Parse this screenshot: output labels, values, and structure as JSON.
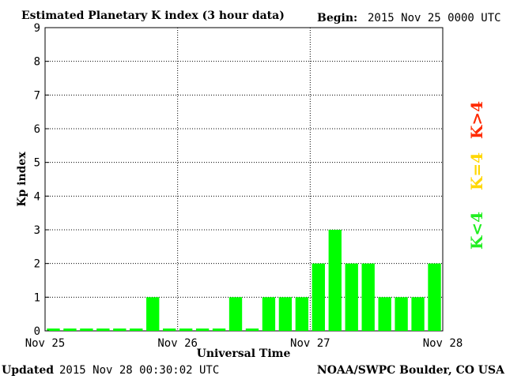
{
  "header": {
    "title": "Estimated Planetary K index (3 hour data)",
    "begin_label": "Begin:",
    "begin_value": "2015 Nov 25 0000 UTC"
  },
  "footer": {
    "updated_label": "Updated",
    "updated_value": "2015 Nov 28 00:30:02 UTC",
    "source": "NOAA/SWPC Boulder, CO USA"
  },
  "legend": {
    "high": "K>4",
    "mid": "K=4",
    "low": "K<4",
    "colors": {
      "high": "#ff2a00",
      "mid": "#ffd700",
      "low": "#22ee22"
    }
  },
  "chart_data": {
    "type": "bar",
    "title": "Estimated Planetary K index (3 hour data)",
    "xlabel": "Universal Time",
    "ylabel": "Kp index",
    "ylim": [
      0,
      9
    ],
    "yticks": [
      "0",
      "1",
      "2",
      "3",
      "4",
      "5",
      "6",
      "7",
      "8",
      "9"
    ],
    "xticks": [
      "Nov 25",
      "Nov 26",
      "Nov 27",
      "Nov 28"
    ],
    "grid": true,
    "bar_color": "#00ff00",
    "values": [
      0,
      0,
      0,
      0,
      0,
      0,
      1,
      0,
      0,
      0,
      0,
      1,
      0,
      1,
      1,
      1,
      2,
      3,
      2,
      2,
      1,
      1,
      1,
      2
    ]
  }
}
